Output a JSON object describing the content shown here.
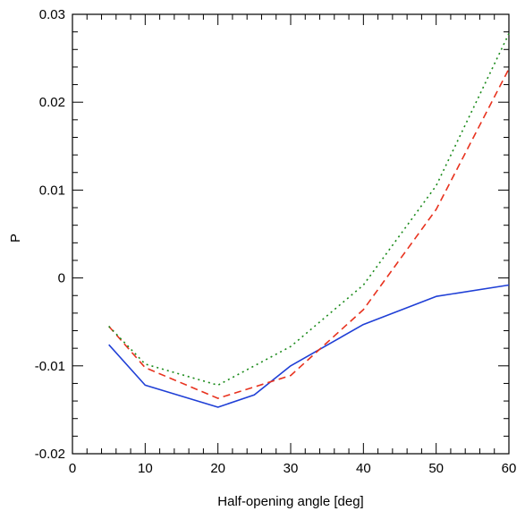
{
  "chart_data": {
    "type": "line",
    "title": "",
    "xlabel": "Half-opening angle [deg]",
    "ylabel": "P",
    "xlim": [
      0,
      60
    ],
    "ylim": [
      -0.02,
      0.03
    ],
    "x_ticks": [
      0,
      10,
      20,
      30,
      40,
      50,
      60
    ],
    "x_tick_labels": [
      "0",
      "10",
      "20",
      "30",
      "40",
      "50",
      "60"
    ],
    "y_ticks": [
      -0.02,
      -0.01,
      0,
      0.01,
      0.02,
      0.03
    ],
    "y_tick_labels": [
      "-0.02",
      "-0.01",
      "0",
      "0.01",
      "0.02",
      "0.03"
    ],
    "grid": false,
    "series": [
      {
        "color": "#1f3fd6",
        "style": "solid",
        "x": [
          5,
          10,
          20,
          25,
          30,
          40,
          50,
          60
        ],
        "values": [
          -0.0076,
          -0.0122,
          -0.0147,
          -0.0133,
          -0.01,
          -0.0053,
          -0.0021,
          -0.0008
        ]
      },
      {
        "color": "#e8321e",
        "style": "dashed",
        "x": [
          5,
          10,
          20,
          30,
          40,
          50,
          60
        ],
        "values": [
          -0.0055,
          -0.0102,
          -0.0137,
          -0.0111,
          -0.0036,
          0.0078,
          0.0238
        ]
      },
      {
        "color": "#1a8a1a",
        "style": "dotted",
        "x": [
          5,
          10,
          20,
          30,
          40,
          50,
          60
        ],
        "values": [
          -0.0055,
          -0.0098,
          -0.0122,
          -0.0078,
          -0.0008,
          0.0105,
          0.0278
        ]
      }
    ]
  }
}
